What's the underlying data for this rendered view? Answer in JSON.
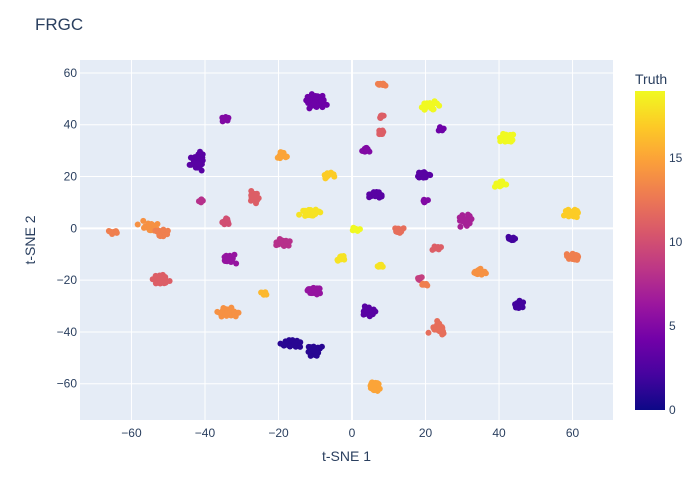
{
  "chart_data": {
    "type": "scatter",
    "title": "FRGC",
    "xlabel": "t-SNE 1",
    "ylabel": "t-SNE 2",
    "xlim": [
      -74,
      71
    ],
    "ylim": [
      -74,
      65
    ],
    "xticks": [
      -60,
      -40,
      -20,
      0,
      20,
      40,
      60
    ],
    "yticks": [
      -60,
      -40,
      -20,
      0,
      20,
      40,
      60
    ],
    "grid": true,
    "colorbar": {
      "title": "Truth",
      "range": [
        0,
        19
      ],
      "ticks": [
        0,
        5,
        10,
        15
      ],
      "colorscale": "plasma"
    },
    "clusters": [
      {
        "x": -65.0,
        "y": -1.5,
        "truth": 13,
        "n": 14,
        "sx": 1.6,
        "sy": 0.8
      },
      {
        "x": -55.0,
        "y": 0.5,
        "truth": 14,
        "n": 22,
        "sx": 2.4,
        "sy": 2.0
      },
      {
        "x": -52.0,
        "y": -1.5,
        "truth": 13,
        "n": 14,
        "sx": 1.6,
        "sy": 1.4
      },
      {
        "x": -52.0,
        "y": -20.0,
        "truth": 11,
        "n": 24,
        "sx": 2.2,
        "sy": 1.8
      },
      {
        "x": -42.0,
        "y": 26.0,
        "truth": 3,
        "n": 40,
        "sx": 1.6,
        "sy": 2.8
      },
      {
        "x": -41.0,
        "y": 10.5,
        "truth": 8,
        "n": 8,
        "sx": 1.0,
        "sy": 0.8
      },
      {
        "x": -34.5,
        "y": 42.5,
        "truth": 5,
        "n": 10,
        "sx": 1.2,
        "sy": 1.0
      },
      {
        "x": -34.5,
        "y": 2.5,
        "truth": 10,
        "n": 10,
        "sx": 1.4,
        "sy": 1.2
      },
      {
        "x": -33.0,
        "y": -12.0,
        "truth": 6,
        "n": 22,
        "sx": 1.8,
        "sy": 1.4
      },
      {
        "x": -33.5,
        "y": -32.5,
        "truth": 14,
        "n": 30,
        "sx": 2.4,
        "sy": 1.8
      },
      {
        "x": -26.5,
        "y": 12.0,
        "truth": 11,
        "n": 18,
        "sx": 1.2,
        "sy": 1.8
      },
      {
        "x": -24.0,
        "y": -25.0,
        "truth": 16,
        "n": 8,
        "sx": 1.0,
        "sy": 0.8
      },
      {
        "x": -19.0,
        "y": 28.0,
        "truth": 15,
        "n": 16,
        "sx": 1.6,
        "sy": 1.2
      },
      {
        "x": -19.0,
        "y": -5.5,
        "truth": 8,
        "n": 24,
        "sx": 2.0,
        "sy": 1.6
      },
      {
        "x": -17.0,
        "y": -44.5,
        "truth": 1,
        "n": 30,
        "sx": 2.6,
        "sy": 1.2
      },
      {
        "x": -10.5,
        "y": -47.5,
        "truth": 1,
        "n": 30,
        "sx": 1.8,
        "sy": 2.2
      },
      {
        "x": -10.0,
        "y": 48.5,
        "truth": 4,
        "n": 46,
        "sx": 2.4,
        "sy": 3.2
      },
      {
        "x": -11.0,
        "y": 6.0,
        "truth": 18,
        "n": 34,
        "sx": 2.8,
        "sy": 1.2
      },
      {
        "x": -10.5,
        "y": -24.0,
        "truth": 6,
        "n": 26,
        "sx": 2.2,
        "sy": 1.4
      },
      {
        "x": -6.5,
        "y": 20.5,
        "truth": 17,
        "n": 14,
        "sx": 1.4,
        "sy": 1.0
      },
      {
        "x": -3.0,
        "y": -11.5,
        "truth": 18,
        "n": 16,
        "sx": 1.4,
        "sy": 1.2
      },
      {
        "x": 1.0,
        "y": -0.5,
        "truth": 19,
        "n": 12,
        "sx": 1.0,
        "sy": 0.9
      },
      {
        "x": 4.0,
        "y": 30.5,
        "truth": 5,
        "n": 12,
        "sx": 1.2,
        "sy": 1.0
      },
      {
        "x": 6.5,
        "y": 13.0,
        "truth": 3,
        "n": 20,
        "sx": 1.4,
        "sy": 1.4
      },
      {
        "x": 4.5,
        "y": -32.0,
        "truth": 3,
        "n": 28,
        "sx": 1.6,
        "sy": 2.0
      },
      {
        "x": 6.5,
        "y": -61.0,
        "truth": 15,
        "n": 30,
        "sx": 1.4,
        "sy": 2.2
      },
      {
        "x": 8.0,
        "y": 55.5,
        "truth": 13,
        "n": 10,
        "sx": 1.4,
        "sy": 0.6
      },
      {
        "x": 8.0,
        "y": 43.0,
        "truth": 11,
        "n": 8,
        "sx": 0.8,
        "sy": 0.8
      },
      {
        "x": 8.0,
        "y": 37.0,
        "truth": 11,
        "n": 10,
        "sx": 0.8,
        "sy": 1.0
      },
      {
        "x": 7.5,
        "y": -14.5,
        "truth": 18,
        "n": 8,
        "sx": 1.0,
        "sy": 0.8
      },
      {
        "x": 13.0,
        "y": -1.0,
        "truth": 12,
        "n": 14,
        "sx": 1.2,
        "sy": 1.2
      },
      {
        "x": 19.5,
        "y": 20.5,
        "truth": 3,
        "n": 28,
        "sx": 1.8,
        "sy": 1.2
      },
      {
        "x": 20.0,
        "y": 10.5,
        "truth": 5,
        "n": 6,
        "sx": 0.8,
        "sy": 0.6
      },
      {
        "x": 18.5,
        "y": -19.5,
        "truth": 9,
        "n": 6,
        "sx": 0.8,
        "sy": 0.8
      },
      {
        "x": 19.5,
        "y": -21.5,
        "truth": 13,
        "n": 8,
        "sx": 1.0,
        "sy": 0.8
      },
      {
        "x": 21.0,
        "y": 47.5,
        "truth": 19,
        "n": 30,
        "sx": 2.0,
        "sy": 1.8
      },
      {
        "x": 24.5,
        "y": 38.5,
        "truth": 4,
        "n": 8,
        "sx": 1.0,
        "sy": 0.8
      },
      {
        "x": 23.0,
        "y": -7.5,
        "truth": 11,
        "n": 10,
        "sx": 1.2,
        "sy": 0.8
      },
      {
        "x": 23.0,
        "y": -38.5,
        "truth": 12,
        "n": 30,
        "sx": 2.4,
        "sy": 1.8
      },
      {
        "x": 31.5,
        "y": 3.0,
        "truth": 7,
        "n": 26,
        "sx": 2.2,
        "sy": 1.8
      },
      {
        "x": 34.5,
        "y": -17.0,
        "truth": 14,
        "n": 22,
        "sx": 1.8,
        "sy": 1.6
      },
      {
        "x": 40.5,
        "y": 17.0,
        "truth": 19,
        "n": 22,
        "sx": 1.4,
        "sy": 1.2
      },
      {
        "x": 42.5,
        "y": 35.0,
        "truth": 19,
        "n": 22,
        "sx": 2.0,
        "sy": 1.4
      },
      {
        "x": 43.5,
        "y": -4.0,
        "truth": 2,
        "n": 10,
        "sx": 0.8,
        "sy": 0.8
      },
      {
        "x": 45.5,
        "y": -29.5,
        "truth": 2,
        "n": 18,
        "sx": 1.2,
        "sy": 1.4
      },
      {
        "x": 59.5,
        "y": 6.0,
        "truth": 17,
        "n": 30,
        "sx": 2.2,
        "sy": 1.6
      },
      {
        "x": 60.5,
        "y": -11.0,
        "truth": 13,
        "n": 20,
        "sx": 1.6,
        "sy": 1.2
      }
    ]
  }
}
